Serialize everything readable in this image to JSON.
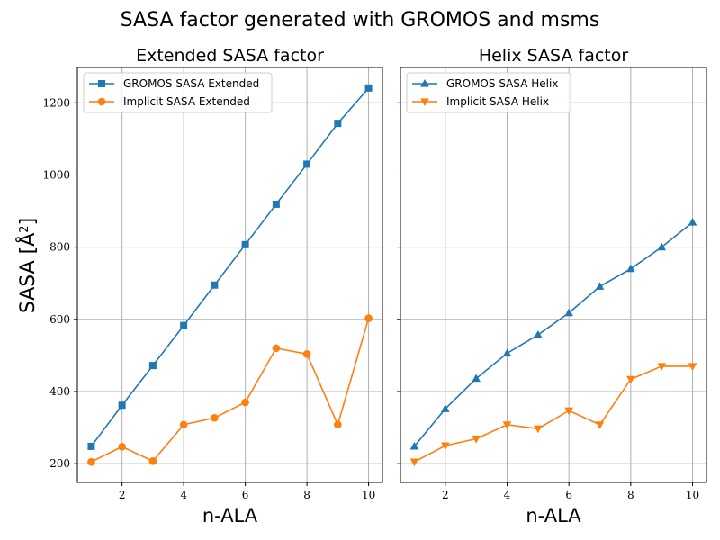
{
  "suptitle": "SASA factor generated with GROMOS and msms",
  "ylabel": "SASA [",
  "ylabel_unit": "Å",
  "ylabel_sup": "2",
  "ylabel_end": "]",
  "chart_data": [
    {
      "type": "line",
      "title": "Extended SASA factor",
      "xlabel": "n-ALA",
      "x": [
        1,
        2,
        3,
        4,
        5,
        6,
        7,
        8,
        9,
        10
      ],
      "xticks": [
        2,
        4,
        6,
        8,
        10
      ],
      "yticks": [
        200,
        400,
        600,
        800,
        1000,
        1200
      ],
      "xlim": [
        0.55,
        10.45
      ],
      "ylim": [
        148,
        1298
      ],
      "grid": true,
      "legend_position": "upper-left",
      "series": [
        {
          "name": "GROMOS SASA Extended",
          "color": "#1f77b4",
          "marker": "square",
          "values": [
            248,
            362,
            472,
            583,
            695,
            807,
            919,
            1030,
            1143,
            1241
          ]
        },
        {
          "name": "Implicit SASA Extended",
          "color": "#ff7f0e",
          "marker": "circle",
          "values": [
            205,
            247,
            207,
            308,
            327,
            370,
            520,
            504,
            308,
            603
          ]
        }
      ]
    },
    {
      "type": "line",
      "title": "Helix SASA factor",
      "xlabel": "n-ALA",
      "x": [
        1,
        2,
        3,
        4,
        5,
        6,
        7,
        8,
        9,
        10
      ],
      "xticks": [
        2,
        4,
        6,
        8,
        10
      ],
      "yticks": [
        200,
        400,
        600,
        800,
        1000,
        1200
      ],
      "xlim": [
        0.55,
        10.45
      ],
      "ylim": [
        148,
        1298
      ],
      "grid": true,
      "legend_position": "upper-left",
      "series": [
        {
          "name": "GROMOS SASA Helix",
          "color": "#1f77b4",
          "marker": "triangle-up",
          "values": [
            248,
            352,
            436,
            506,
            557,
            618,
            691,
            740,
            800,
            869
          ]
        },
        {
          "name": "Implicit SASA Helix",
          "color": "#ff7f0e",
          "marker": "triangle-down",
          "values": [
            205,
            250,
            269,
            308,
            297,
            347,
            308,
            434,
            470,
            470
          ]
        }
      ]
    }
  ]
}
